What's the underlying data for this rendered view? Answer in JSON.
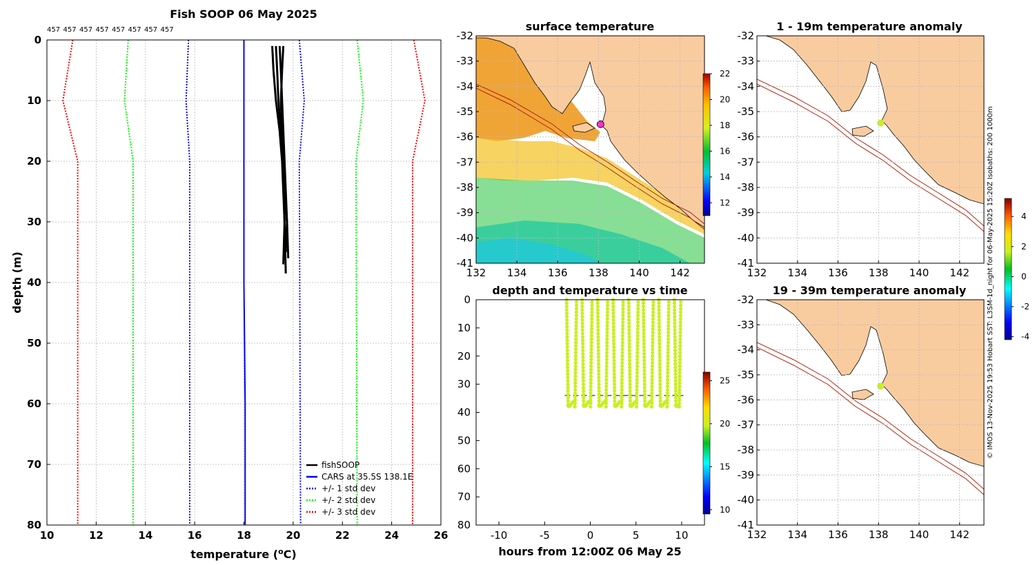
{
  "chart_data": [
    {
      "id": "profile",
      "type": "line",
      "title": "Fish SOOP 06 May 2025",
      "top_labels": [
        "457",
        "457",
        "457",
        "457",
        "457",
        "457",
        "457",
        "457"
      ],
      "xlabel": "temperature (",
      "xlabel_sup": "o",
      "xlabel_end": "C)",
      "ylabel": "depth (m)",
      "xlim": [
        10,
        26
      ],
      "ylim": [
        0,
        80
      ],
      "xticks": [
        10,
        12,
        14,
        16,
        18,
        20,
        22,
        24,
        26
      ],
      "yticks": [
        0,
        10,
        20,
        30,
        40,
        50,
        60,
        70,
        80
      ],
      "legend_position": "bottom-right",
      "series": [
        {
          "name": "fishSOOP",
          "color": "#000000",
          "style": "solid",
          "casts": [
            {
              "x": [
                19.15,
                19.2,
                19.3,
                19.45,
                19.55,
                19.6,
                19.65,
                19.7
              ],
              "y": [
                1,
                5,
                10,
                15,
                20,
                25,
                30,
                38.5
              ]
            },
            {
              "x": [
                19.3,
                19.35,
                19.4,
                19.5,
                19.6,
                19.65,
                19.75,
                19.8
              ],
              "y": [
                1,
                5,
                10,
                15,
                20,
                25,
                30,
                36
              ]
            },
            {
              "x": [
                19.45,
                19.5,
                19.55,
                19.6,
                19.65,
                19.7,
                19.75,
                19.7
              ],
              "y": [
                1,
                5,
                10,
                15,
                20,
                25,
                30,
                35
              ]
            },
            {
              "x": [
                19.6,
                19.55,
                19.5,
                19.55,
                19.6,
                19.62,
                19.65,
                19.6
              ],
              "y": [
                1,
                5,
                10,
                15,
                20,
                25,
                30,
                37
              ]
            }
          ]
        },
        {
          "name": "CARS at 35.5S 138.1E",
          "color": "#0000ff",
          "style": "solid",
          "x": [
            18.0,
            18.0,
            18.0,
            18.0,
            18.0,
            18.05,
            18.05
          ],
          "y": [
            0,
            10,
            20,
            30,
            40,
            60,
            80
          ]
        },
        {
          "name": "+/- 1 std dev",
          "color": "#0000ff",
          "style": "dotted",
          "x": [
            15.75,
            15.65,
            15.8,
            15.8
          ],
          "y": [
            0,
            10,
            20,
            80
          ],
          "x2": [
            20.25,
            20.45,
            20.25,
            20.3
          ],
          "y2": [
            0,
            10,
            20,
            80
          ]
        },
        {
          "name": "+/- 2 std dev",
          "color": "#00ff00",
          "style": "dotted",
          "x": [
            13.3,
            13.15,
            13.5,
            13.5
          ],
          "y": [
            0,
            10,
            20,
            80
          ],
          "x2": [
            22.6,
            22.85,
            22.55,
            22.6
          ],
          "y2": [
            0,
            10,
            20,
            80
          ]
        },
        {
          "name": "+/- 3 std dev",
          "color": "#ff0000",
          "style": "dotted",
          "x": [
            11.05,
            10.65,
            11.25,
            11.25
          ],
          "y": [
            0,
            10,
            20,
            80
          ],
          "x2": [
            24.9,
            25.35,
            24.85,
            24.85
          ],
          "y2": [
            0,
            10,
            20,
            80
          ]
        }
      ]
    },
    {
      "id": "sst",
      "type": "heatmap",
      "title": "surface temperature",
      "xlim": [
        132,
        143.2
      ],
      "ylim": [
        -41,
        -32
      ],
      "xticks": [
        132,
        134,
        136,
        138,
        140,
        142
      ],
      "yticks": [
        -32,
        -33,
        -34,
        -35,
        -36,
        -37,
        -38,
        -39,
        -40,
        -41
      ],
      "colorbar": {
        "min": 11,
        "max": 22,
        "ticks": [
          12,
          14,
          16,
          18,
          20,
          22
        ]
      },
      "marker": {
        "lon": 138.1,
        "lat": -35.5,
        "color": "#ff2ad4"
      }
    },
    {
      "id": "timeseries",
      "type": "scatter",
      "title": "depth and temperature vs time",
      "xlabel": "hours from 12:00Z 06 May 25",
      "xlim": [
        -12.5,
        12.5
      ],
      "ylim": [
        0,
        80
      ],
      "xticks": [
        -10,
        -5,
        0,
        5,
        10
      ],
      "yticks": [
        0,
        10,
        20,
        30,
        40,
        50,
        60,
        70,
        80
      ],
      "colorbar": {
        "min": 9.5,
        "max": 26,
        "ticks": [
          10,
          15,
          20,
          25
        ]
      },
      "point_color": "#c8f020",
      "casts_start_hours": [
        -2.6,
        -0.9,
        0.8,
        2.5,
        4.2,
        5.8,
        7.5,
        9.2
      ],
      "max_depth": 38,
      "bottom_line_depth": 34
    },
    {
      "id": "anom1",
      "type": "heatmap",
      "title": "1 - 19m temperature anomaly",
      "xlim": [
        132,
        143.2
      ],
      "ylim": [
        -41,
        -32
      ],
      "xticks": [
        132,
        134,
        136,
        138,
        140,
        142
      ],
      "yticks": [
        -32,
        -33,
        -34,
        -35,
        -36,
        -37,
        -38,
        -39,
        -40,
        -41
      ],
      "marker": {
        "lon": 138.1,
        "lat": -35.45,
        "color": "#c8f020"
      }
    },
    {
      "id": "anom2",
      "type": "heatmap",
      "title": "19 - 39m temperature anomaly",
      "xlim": [
        132,
        143.2
      ],
      "ylim": [
        -41,
        -32
      ],
      "xticks": [
        132,
        134,
        136,
        138,
        140,
        142
      ],
      "yticks": [
        -32,
        -33,
        -34,
        -35,
        -36,
        -37,
        -38,
        -39,
        -40,
        -41
      ],
      "marker": {
        "lon": 138.1,
        "lat": -35.45,
        "color": "#c8f020"
      }
    }
  ],
  "anomaly_colorbar": {
    "min": -4.2,
    "max": 5.2,
    "ticks": [
      -4,
      -2,
      0,
      2,
      4
    ]
  },
  "credit": "© IMOS 13-Nov-2025 19:53 Hobart SST: L3SM-1d_night for 06-May-2025 15:20Z Isobaths: 200  1000m",
  "colors": {
    "land": "#f9cca0",
    "isobath": "#b02010"
  }
}
